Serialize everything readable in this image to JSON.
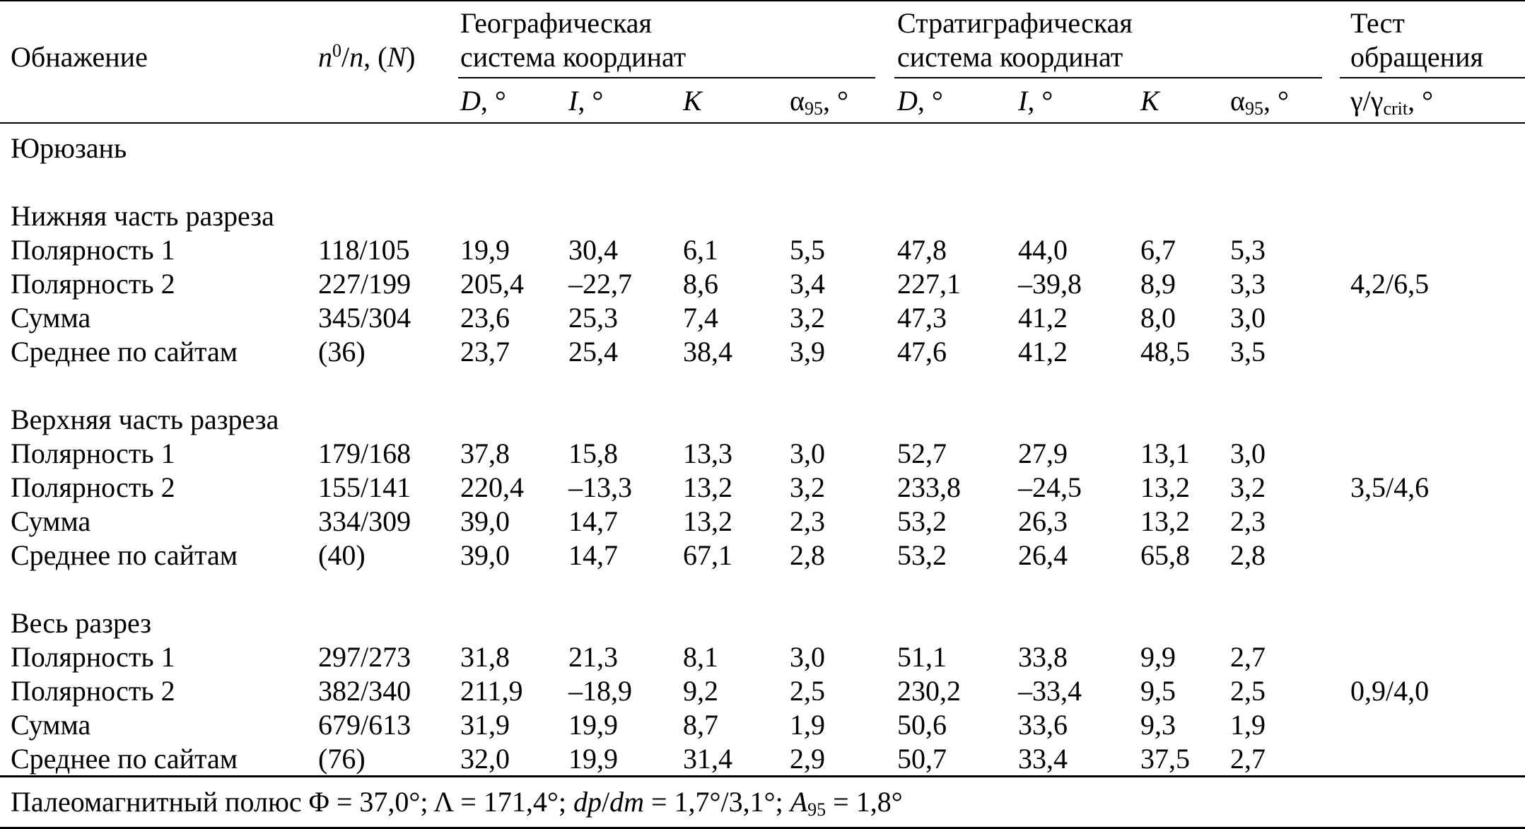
{
  "headers": {
    "outcrop": "Обнажение",
    "n_prefix": "n",
    "n_sup": "0",
    "n_mid": "/",
    "n_n": "n",
    "n_comma": ", (",
    "n_N": "N",
    "n_close": ")",
    "geo_line1": "Географическая",
    "geo_line2": "система координат",
    "strat_line1": "Стратиграфическая",
    "strat_line2": "система координат",
    "test_line1": "Тест",
    "test_line2": "обращения",
    "D": "D",
    "deg_suffix": ", °",
    "I": "I",
    "K": "K",
    "alpha": "α",
    "alpha_sub": "95",
    "gamma": "γ/γ",
    "gamma_sub": "crit"
  },
  "site": "Юрюзань",
  "sections": [
    {
      "title": "Нижняя часть разреза",
      "test": "4,2/6,5",
      "rows": [
        {
          "label": "Полярность 1",
          "n": "118/105",
          "gD": "19,9",
          "gI": "30,4",
          "gK": "6,1",
          "ga": "5,5",
          "sD": "47,8",
          "sI": "44,0",
          "sK": "6,7",
          "sa": "5,3"
        },
        {
          "label": "Полярность 2",
          "n": "227/199",
          "gD": "205,4",
          "gI": "–22,7",
          "gK": "8,6",
          "ga": "3,4",
          "sD": "227,1",
          "sI": "–39,8",
          "sK": "8,9",
          "sa": "3,3"
        },
        {
          "label": "Сумма",
          "n": "345/304",
          "gD": "23,6",
          "gI": "25,3",
          "gK": "7,4",
          "ga": "3,2",
          "sD": "47,3",
          "sI": "41,2",
          "sK": "8,0",
          "sa": "3,0"
        },
        {
          "label": "Среднее по сайтам",
          "n": "(36)",
          "gD": "23,7",
          "gI": "25,4",
          "gK": "38,4",
          "ga": "3,9",
          "sD": "47,6",
          "sI": "41,2",
          "sK": "48,5",
          "sa": "3,5"
        }
      ]
    },
    {
      "title": "Верхняя часть разреза",
      "test": "3,5/4,6",
      "rows": [
        {
          "label": "Полярность 1",
          "n": "179/168",
          "gD": "37,8",
          "gI": "15,8",
          "gK": "13,3",
          "ga": "3,0",
          "sD": "52,7",
          "sI": "27,9",
          "sK": "13,1",
          "sa": "3,0"
        },
        {
          "label": "Полярность 2",
          "n": "155/141",
          "gD": "220,4",
          "gI": "–13,3",
          "gK": "13,2",
          "ga": "3,2",
          "sD": "233,8",
          "sI": "–24,5",
          "sK": "13,2",
          "sa": "3,2"
        },
        {
          "label": "Сумма",
          "n": "334/309",
          "gD": "39,0",
          "gI": "14,7",
          "gK": "13,2",
          "ga": "2,3",
          "sD": "53,2",
          "sI": "26,3",
          "sK": "13,2",
          "sa": "2,3"
        },
        {
          "label": "Среднее по сайтам",
          "n": "(40)",
          "gD": "39,0",
          "gI": "14,7",
          "gK": "67,1",
          "ga": "2,8",
          "sD": "53,2",
          "sI": "26,4",
          "sK": "65,8",
          "sa": "2,8"
        }
      ]
    },
    {
      "title": "Весь разрез",
      "test": "0,9/4,0",
      "rows": [
        {
          "label": "Полярность 1",
          "n": "297/273",
          "gD": "31,8",
          "gI": "21,3",
          "gK": "8,1",
          "ga": "3,0",
          "sD": "51,1",
          "sI": "33,8",
          "sK": "9,9",
          "sa": "2,7"
        },
        {
          "label": "Полярность 2",
          "n": "382/340",
          "gD": "211,9",
          "gI": "–18,9",
          "gK": "9,2",
          "ga": "2,5",
          "sD": "230,2",
          "sI": "–33,4",
          "sK": "9,5",
          "sa": "2,5"
        },
        {
          "label": "Сумма",
          "n": "679/613",
          "gD": "31,9",
          "gI": "19,9",
          "gK": "8,7",
          "ga": "1,9",
          "sD": "50,6",
          "sI": "33,6",
          "sK": "9,3",
          "sa": "1,9"
        },
        {
          "label": "Среднее по сайтам",
          "n": "(76)",
          "gD": "32,0",
          "gI": "19,9",
          "gK": "31,4",
          "ga": "2,9",
          "sD": "50,7",
          "sI": "33,4",
          "sK": "37,5",
          "sa": "2,7"
        }
      ]
    }
  ],
  "footer": {
    "p1": "Палеомагнитный полюс Φ = 37,0°; Λ = 171,4°; ",
    "dpdm": "dp",
    "slash": "/",
    "dm": "dm",
    "p2": " = 1,7°/3,1°; ",
    "A": "A",
    "A_sub": "95",
    "p3": " = 1,8°"
  }
}
